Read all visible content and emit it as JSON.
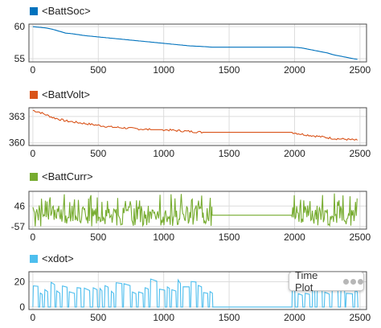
{
  "badge": {
    "label": "Time Plot",
    "menu_icon": "ellipsis-icon"
  },
  "chart_data": [
    {
      "type": "line",
      "title": "<BattSoc>",
      "color": "#0072bd",
      "xlim": [
        -30,
        2550
      ],
      "ylim": [
        54.5,
        60.4
      ],
      "xticks": [
        0,
        500,
        1000,
        1500,
        2000,
        2500
      ],
      "yticks": [
        55,
        60
      ],
      "ytick_labels": [
        "55",
        "60"
      ],
      "grid": true,
      "x": [
        0,
        50,
        100,
        150,
        200,
        250,
        300,
        400,
        500,
        600,
        700,
        800,
        900,
        1000,
        1100,
        1200,
        1300,
        1370,
        1500,
        1600,
        1700,
        1800,
        1900,
        1980,
        2050,
        2100,
        2150,
        2200,
        2250,
        2300,
        2350,
        2400,
        2450,
        2480
      ],
      "y": [
        60.0,
        59.9,
        59.8,
        59.6,
        59.3,
        59.0,
        58.9,
        58.6,
        58.4,
        58.2,
        58.0,
        57.8,
        57.6,
        57.4,
        57.2,
        57.0,
        56.9,
        56.8,
        56.8,
        56.8,
        56.8,
        56.8,
        56.8,
        56.8,
        56.7,
        56.5,
        56.3,
        56.1,
        55.9,
        55.6,
        55.4,
        55.2,
        55.0,
        54.9
      ],
      "noise": 0
    },
    {
      "type": "line",
      "title": "<BattVolt>",
      "color": "#d95319",
      "xlim": [
        -30,
        2550
      ],
      "ylim": [
        359.7,
        364.0
      ],
      "xticks": [
        0,
        500,
        1000,
        1500,
        2000,
        2500
      ],
      "yticks": [
        360,
        363
      ],
      "ytick_labels": [
        "360",
        "363"
      ],
      "grid": true,
      "x": [
        0,
        50,
        100,
        150,
        200,
        250,
        300,
        400,
        500,
        600,
        700,
        800,
        900,
        1000,
        1100,
        1200,
        1300,
        1370,
        1500,
        1700,
        1900,
        1980,
        2050,
        2100,
        2200,
        2300,
        2400,
        2480
      ],
      "y": [
        363.7,
        363.5,
        363.2,
        362.9,
        362.7,
        362.5,
        362.4,
        362.2,
        362.0,
        361.8,
        361.7,
        361.6,
        361.5,
        361.5,
        361.4,
        361.3,
        361.2,
        361.2,
        361.2,
        361.2,
        361.2,
        361.2,
        361.0,
        360.9,
        360.7,
        360.5,
        360.4,
        360.3
      ],
      "noise": 0.12
    },
    {
      "type": "line",
      "title": "<BattCurr>",
      "color": "#77ac30",
      "xlim": [
        -30,
        2550
      ],
      "ylim": [
        -70,
        120
      ],
      "xticks": [
        0,
        500,
        1000,
        1500,
        2000,
        2500
      ],
      "yticks": [
        -57,
        46
      ],
      "ytick_labels": [
        "-57",
        "46"
      ],
      "grid": true,
      "segments": [
        {
          "from": 0,
          "to": 1370,
          "kind": "oscillating",
          "min": -57,
          "max": 110,
          "base": 10
        },
        {
          "from": 1370,
          "to": 1980,
          "kind": "flat",
          "value": 0
        },
        {
          "from": 1980,
          "to": 2480,
          "kind": "oscillating",
          "min": -57,
          "max": 110,
          "base": 10
        }
      ]
    },
    {
      "type": "line",
      "title": "<xdot>",
      "color": "#4dbeee",
      "xlim": [
        -30,
        2550
      ],
      "ylim": [
        -2,
        28
      ],
      "xticks": [
        0,
        500,
        1000,
        1500,
        2000,
        2500
      ],
      "yticks": [
        0,
        20
      ],
      "ytick_labels": [
        "0",
        "20"
      ],
      "grid": true,
      "segments": [
        {
          "from": 0,
          "to": 1370,
          "kind": "pulses",
          "min": 0,
          "max": 23
        },
        {
          "from": 1370,
          "to": 1980,
          "kind": "flat",
          "value": 0
        },
        {
          "from": 1980,
          "to": 2480,
          "kind": "pulses",
          "min": 0,
          "max": 23
        }
      ]
    }
  ]
}
